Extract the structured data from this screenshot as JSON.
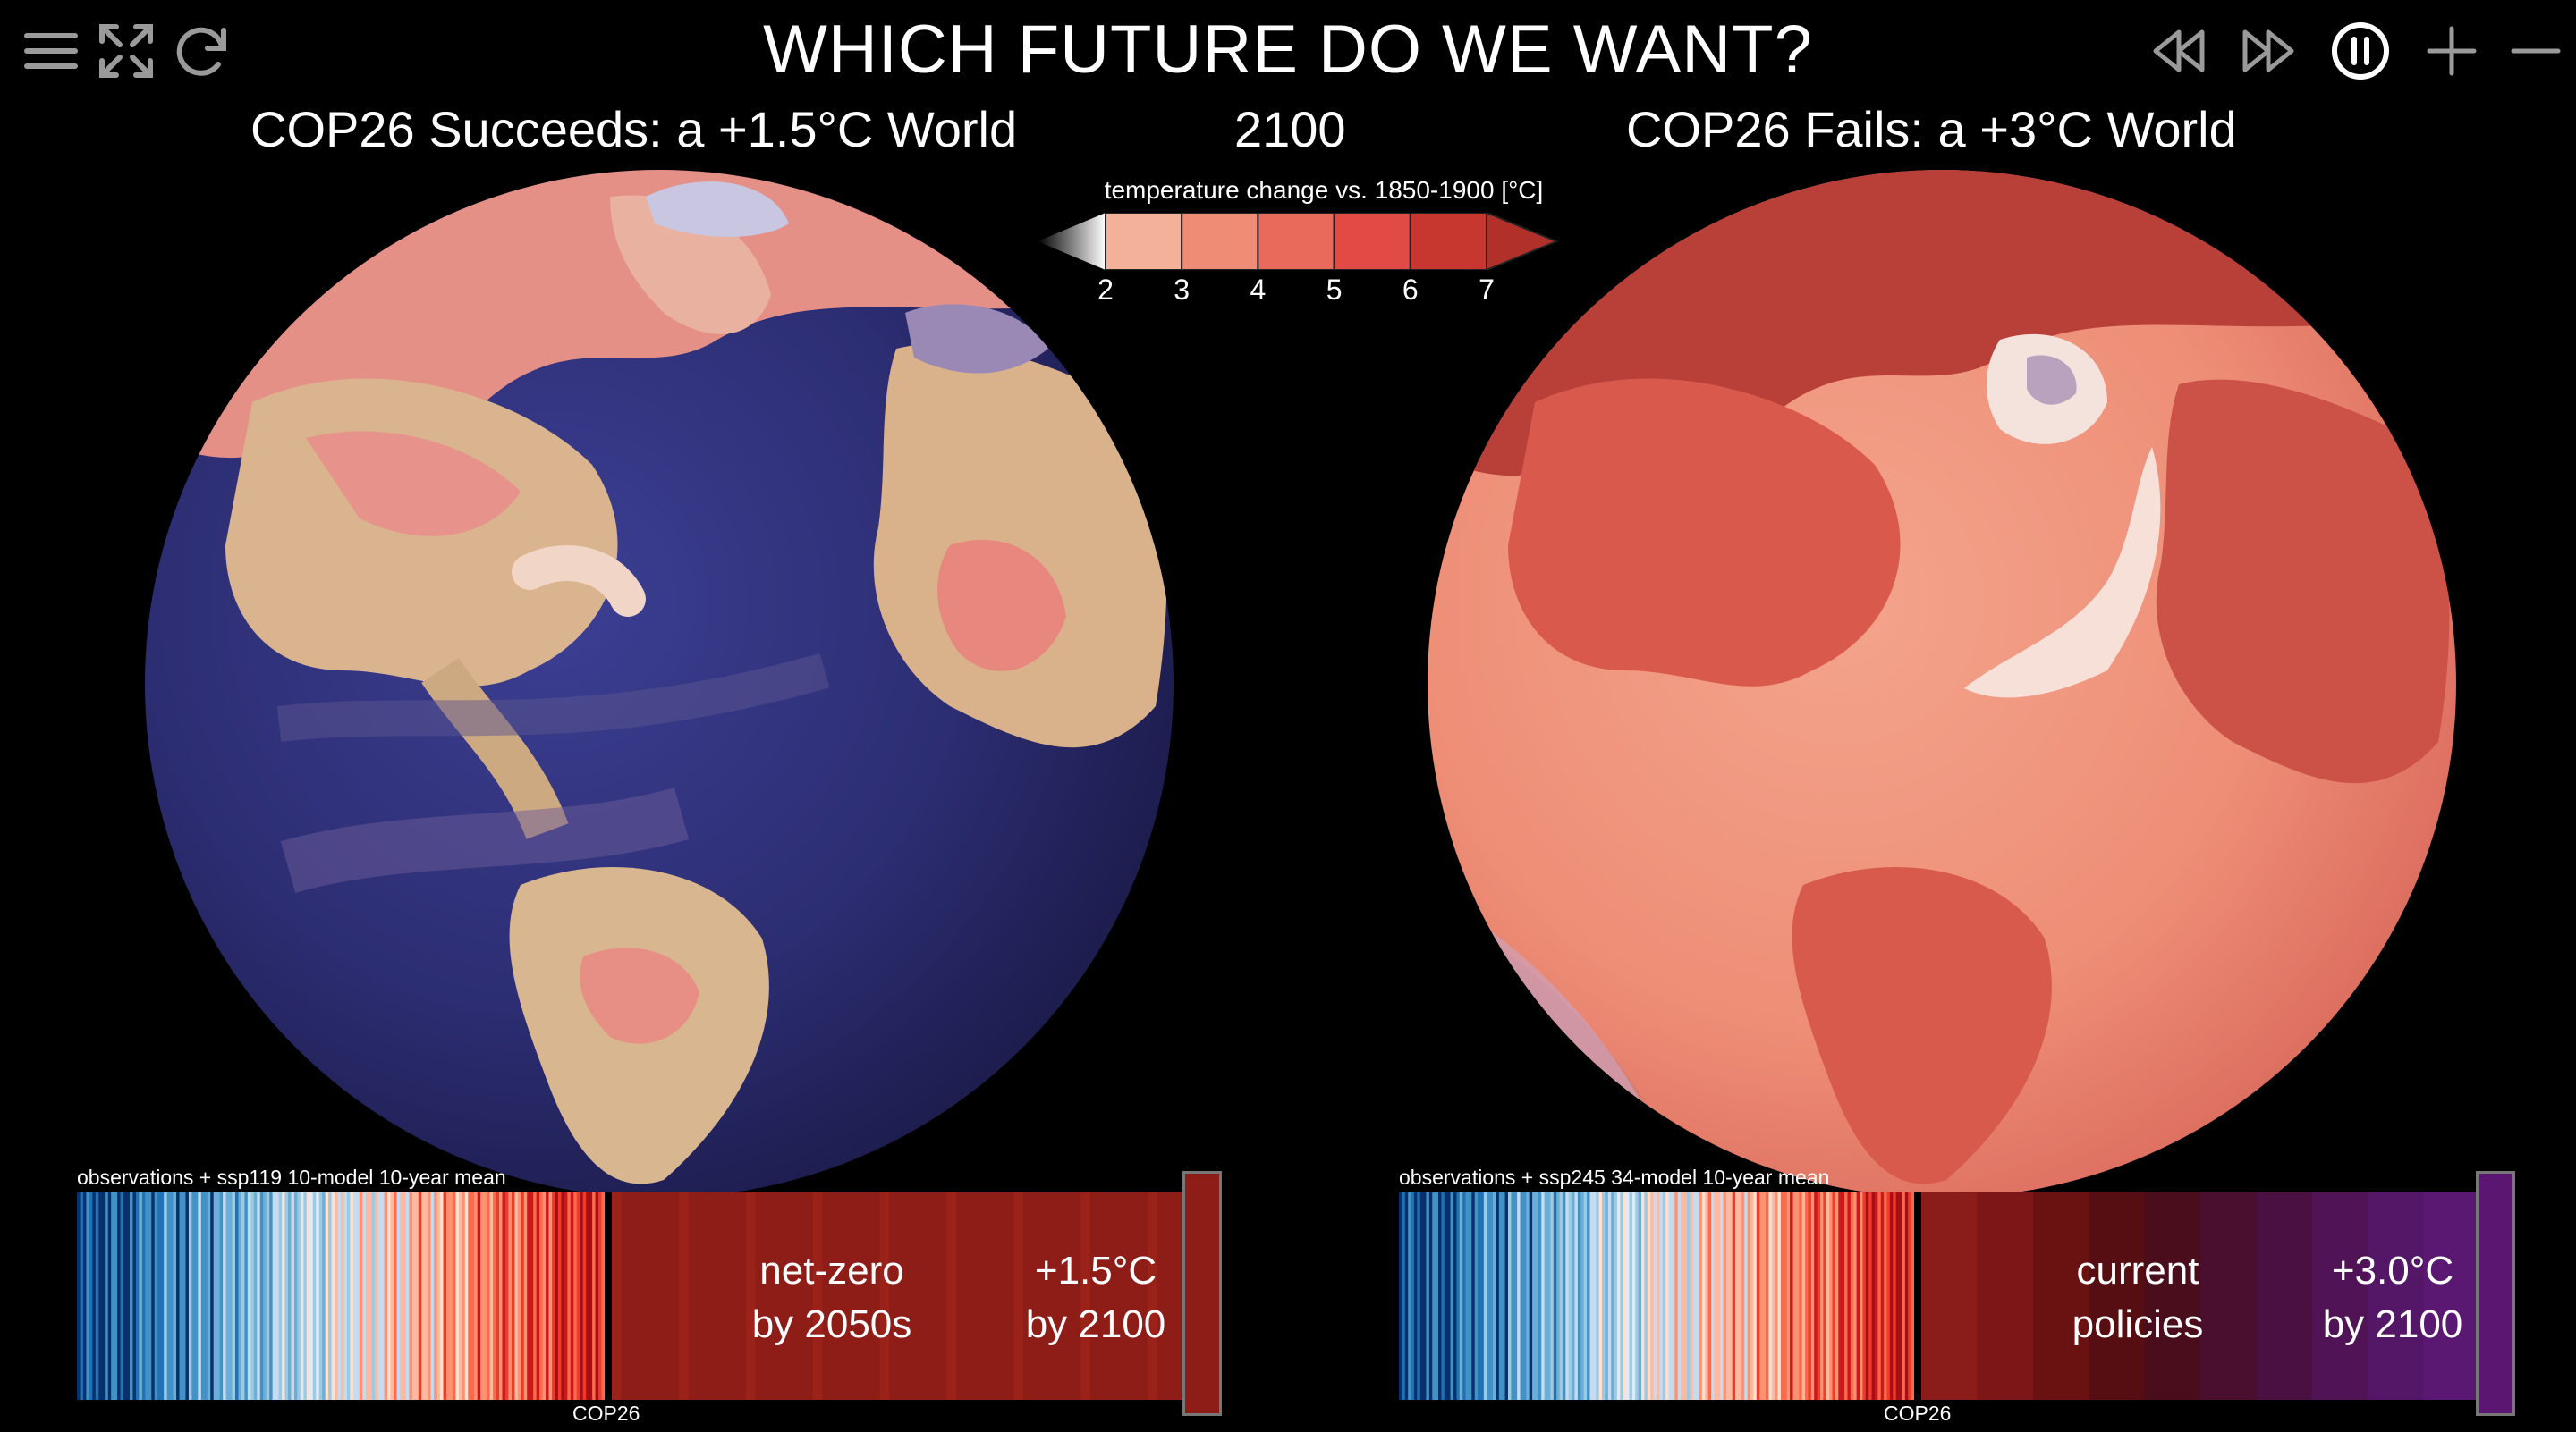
{
  "header": {
    "title": "WHICH FUTURE DO WE WANT?",
    "year": "2100",
    "left_title": "COP26 Succeeds: a +1.5°C World",
    "right_title": "COP26 Fails: a +3°C World"
  },
  "toolbar_left": [
    {
      "icon": "menu-icon"
    },
    {
      "icon": "fullscreen-icon"
    },
    {
      "icon": "reload-icon"
    }
  ],
  "toolbar_right": [
    {
      "icon": "rewind-icon"
    },
    {
      "icon": "fast-forward-icon"
    },
    {
      "icon": "pause-icon"
    },
    {
      "icon": "zoom-in-icon"
    },
    {
      "icon": "zoom-out-icon"
    }
  ],
  "colorbar": {
    "title": "temperature change vs. 1850-1900 [°C]",
    "ticks": [
      "2",
      "3",
      "4",
      "5",
      "6",
      "7"
    ],
    "colors": [
      "#f4b19a",
      "#ef8c76",
      "#e96a5b",
      "#e24a45",
      "#c7362f"
    ]
  },
  "left_panel": {
    "stripes_label": "observations + ssp119 10-model 10-year mean",
    "marker_label": "COP26",
    "text_1_line1": "net-zero",
    "text_1_line2": "by 2050s",
    "text_2_line1": "+1.5°C",
    "text_2_line2": "by 2100",
    "future_color": "#8e1c17"
  },
  "right_panel": {
    "stripes_label": "observations + ssp245 34-model 10-year mean",
    "marker_label": "COP26",
    "text_1_line1": "current",
    "text_1_line2": "policies",
    "text_2_line1": "+3.0°C",
    "text_2_line2": "by 2100",
    "future_color": "#5a1560"
  }
}
